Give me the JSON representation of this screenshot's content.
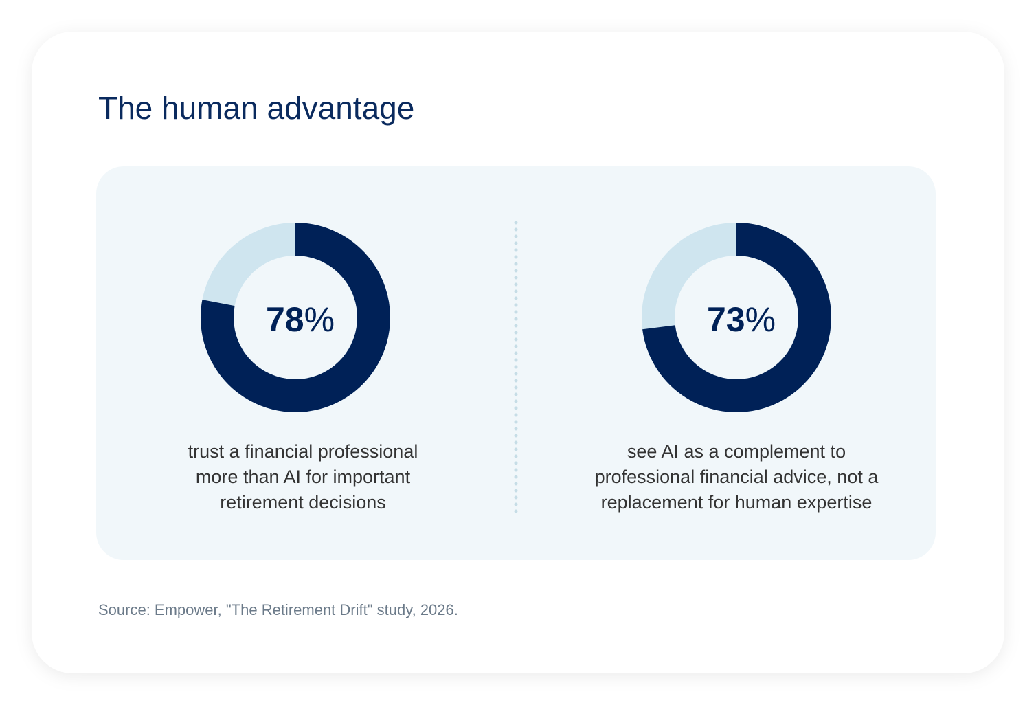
{
  "title": "The human advantage",
  "source": "Source: Empower, \"The Retirement Drift\" study, 2026.",
  "chart_data": [
    {
      "type": "donut",
      "values": [
        78
      ],
      "value_labels": [
        "78%"
      ],
      "color": "#002157",
      "track_color": "#cfe5ef",
      "caption": [
        "trust a financial professional",
        "more than AI for important",
        "retirement decisions"
      ]
    },
    {
      "type": "donut",
      "values": [
        73
      ],
      "value_labels": [
        "73%"
      ],
      "color": "#002157",
      "track_color": "#cfe5ef",
      "caption": [
        "see AI as a complement to",
        "professional financial advice, not a",
        "replacement for human expertise"
      ]
    }
  ]
}
